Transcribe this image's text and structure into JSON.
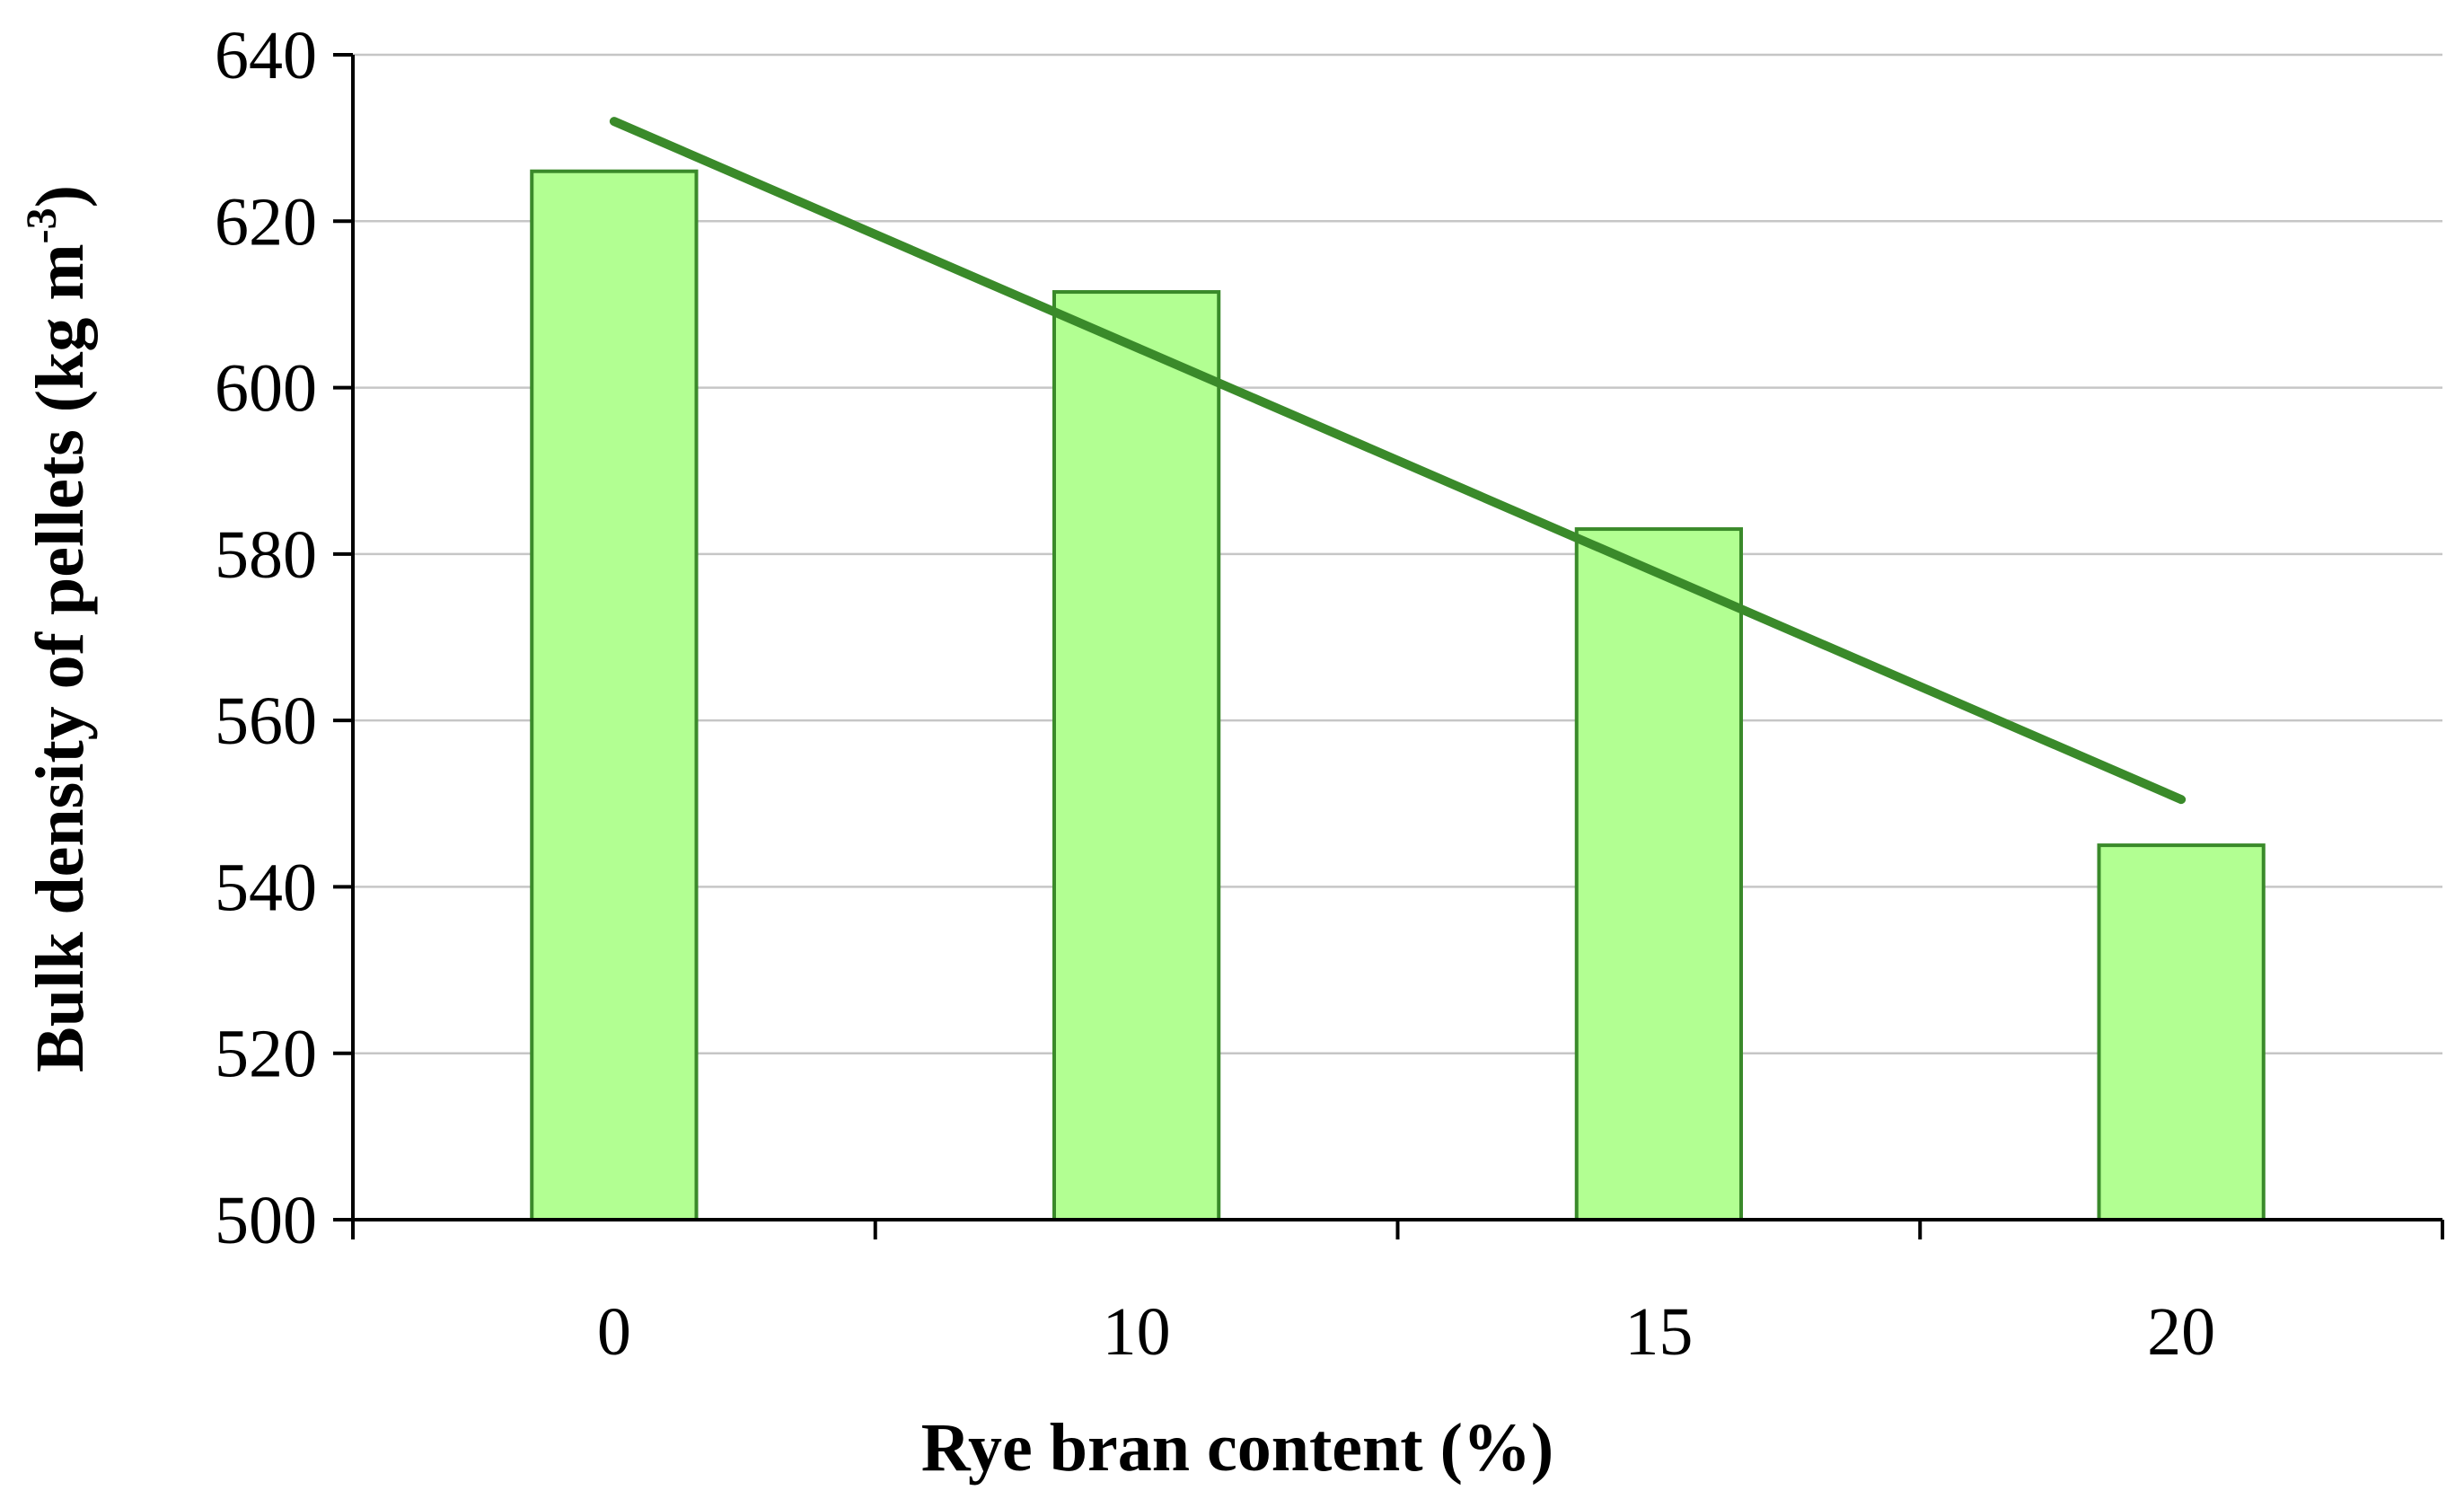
{
  "chart_data": {
    "type": "bar",
    "categories": [
      "0",
      "10",
      "15",
      "20"
    ],
    "values": [
      626,
      611.5,
      583,
      545
    ],
    "xlabel": "Rye bran content (%)",
    "ylabel": {
      "main": "Bulk density of pellets (kg m",
      "superscript": "-3",
      "close": ")"
    },
    "ylim": [
      500,
      640
    ],
    "yticks": [
      "500",
      "520",
      "540",
      "560",
      "580",
      "600",
      "620",
      "640"
    ],
    "grid": true,
    "legend": "none",
    "trendline": {
      "type": "linear",
      "start": 632,
      "end": 550.5
    },
    "colors": {
      "bar_fill": "#b2ff92",
      "bar_stroke": "#3a8a2a",
      "trendline": "#3a8a2a"
    }
  }
}
